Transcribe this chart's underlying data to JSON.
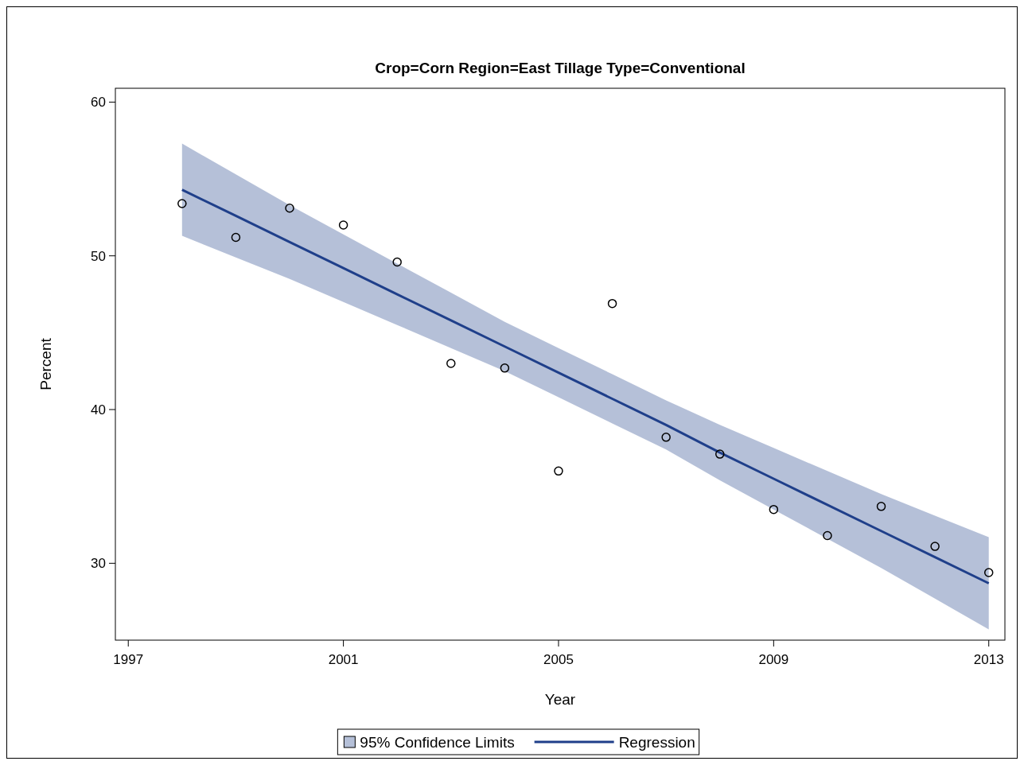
{
  "chart_data": {
    "type": "scatter",
    "title": "Crop=Corn Region=East Tillage Type=Conventional",
    "xlabel": "Year",
    "ylabel": "Percent",
    "annotations": [
      "95% Confidence Limits"
    ],
    "x": [
      1998,
      1999,
      2000,
      2001,
      2002,
      2003,
      2004,
      2005,
      2006,
      2007,
      2008,
      2009,
      2010,
      2011,
      2012,
      2013
    ],
    "series": [
      {
        "type": "line",
        "name": "Regression",
        "color": "#1f3f8a",
        "values": [
          54.3,
          52.6,
          50.9,
          49.2,
          47.5,
          45.8,
          44.1,
          42.4,
          40.7,
          39.0,
          37.2,
          35.5,
          33.8,
          32.1,
          30.4,
          28.7
        ],
        "lower": [
          51.3,
          49.9,
          48.5,
          47.0,
          45.5,
          44.0,
          42.5,
          40.8,
          39.1,
          37.4,
          35.4,
          33.5,
          31.6,
          29.7,
          27.7,
          25.7
        ],
        "upper": [
          57.3,
          55.3,
          53.3,
          51.4,
          49.5,
          47.6,
          45.7,
          44.0,
          42.3,
          40.6,
          39.0,
          37.5,
          36.0,
          34.5,
          33.1,
          31.7
        ]
      },
      {
        "color": "#000000",
        "marker": "circle",
        "values": [
          53.4,
          51.2,
          53.1,
          52.0,
          49.6,
          43.0,
          42.7,
          36.0,
          46.9,
          38.2,
          37.1,
          33.5,
          31.8,
          33.7,
          31.1,
          29.4
        ]
      }
    ],
    "xlim": [
      1996.76,
      2013.3
    ],
    "xticks": [
      1997,
      2001,
      2005,
      2009,
      2013
    ],
    "ylim": [
      25,
      60.9
    ],
    "yticks": [
      30,
      40,
      50,
      60
    ],
    "grid": false,
    "legend": "bottom"
  }
}
